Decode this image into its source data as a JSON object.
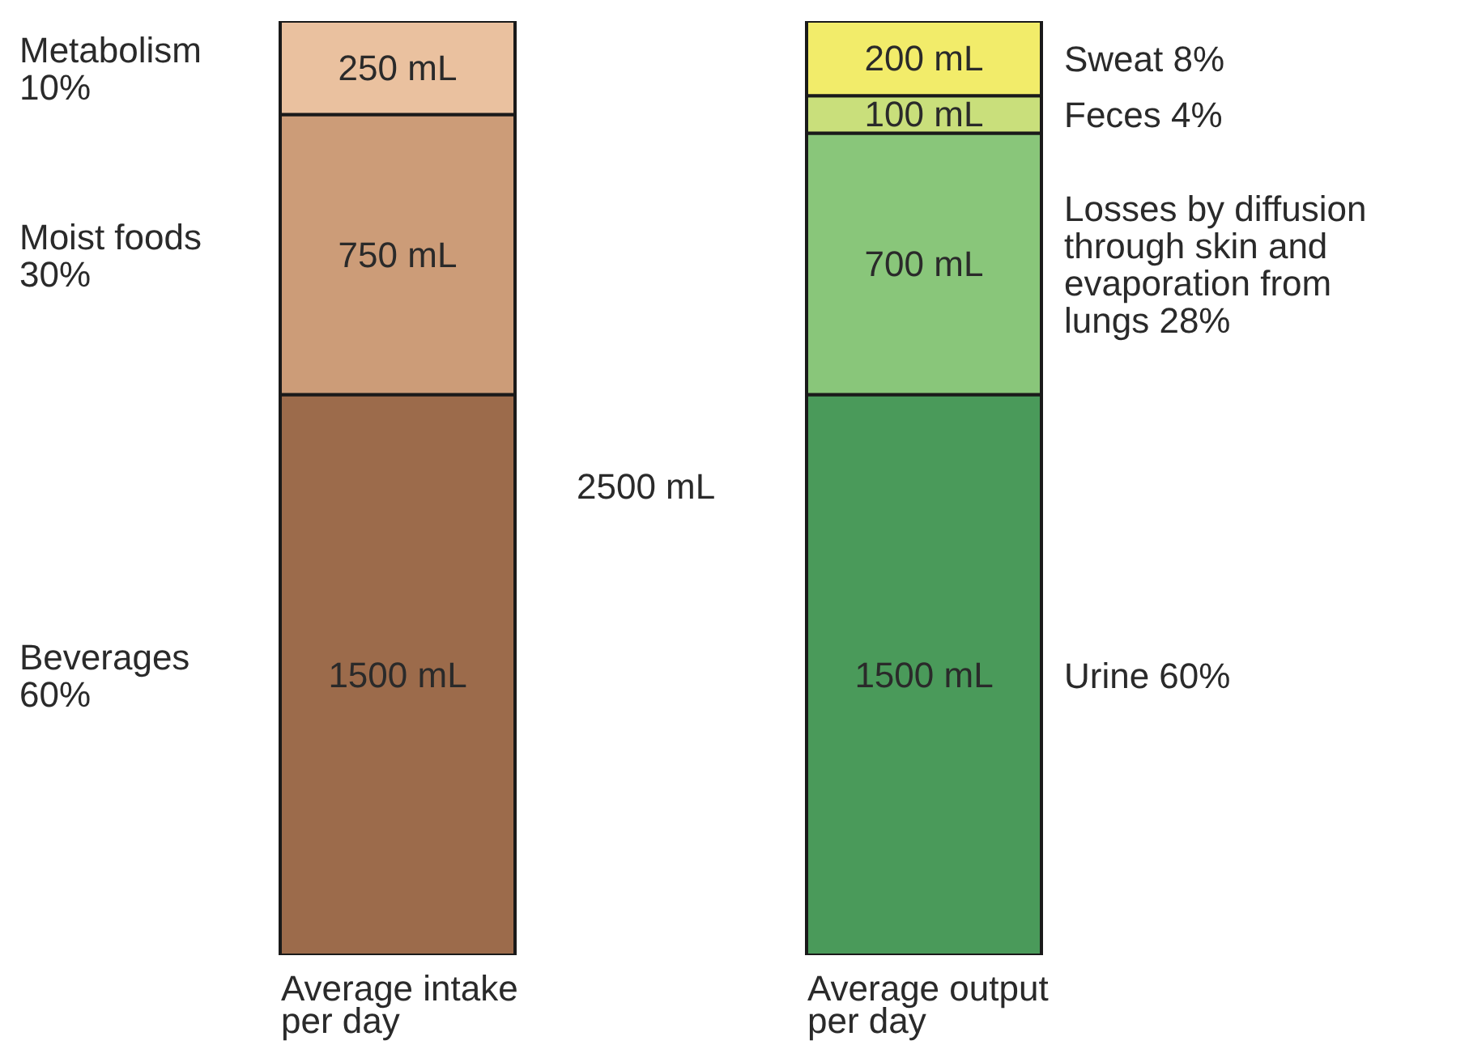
{
  "chart_data": {
    "type": "bar",
    "stacked": true,
    "categories": [
      "Average intake per day",
      "Average output per day"
    ],
    "series": [
      {
        "name": "Beverages 60%",
        "color": "#9c6b4b",
        "values": [
          1500,
          null
        ],
        "value_labels": [
          "1500 mL",
          null
        ]
      },
      {
        "name": "Moist foods 30%",
        "color": "#cc9c78",
        "values": [
          750,
          null
        ],
        "value_labels": [
          "750 mL",
          null
        ]
      },
      {
        "name": "Metabolism 10%",
        "color": "#eac19f",
        "values": [
          250,
          null
        ],
        "value_labels": [
          "250 mL",
          null
        ]
      },
      {
        "name": "Urine 60%",
        "color": "#4a9a5a",
        "values": [
          null,
          1500
        ],
        "value_labels": [
          null,
          "1500 mL"
        ]
      },
      {
        "name": "Losses by diffusion through skin and evaporation from lungs 28%",
        "color": "#89c67a",
        "values": [
          null,
          700
        ],
        "value_labels": [
          null,
          "700 mL"
        ]
      },
      {
        "name": "Feces 4%",
        "color": "#c9df7b",
        "values": [
          null,
          100
        ],
        "value_labels": [
          null,
          "100 mL"
        ]
      },
      {
        "name": "Sweat 8%",
        "color": "#f2ec6a",
        "values": [
          null,
          200
        ],
        "value_labels": [
          null,
          "200 mL"
        ]
      }
    ],
    "annotations": [
      "2500 mL"
    ],
    "legend": false,
    "grid": false
  }
}
